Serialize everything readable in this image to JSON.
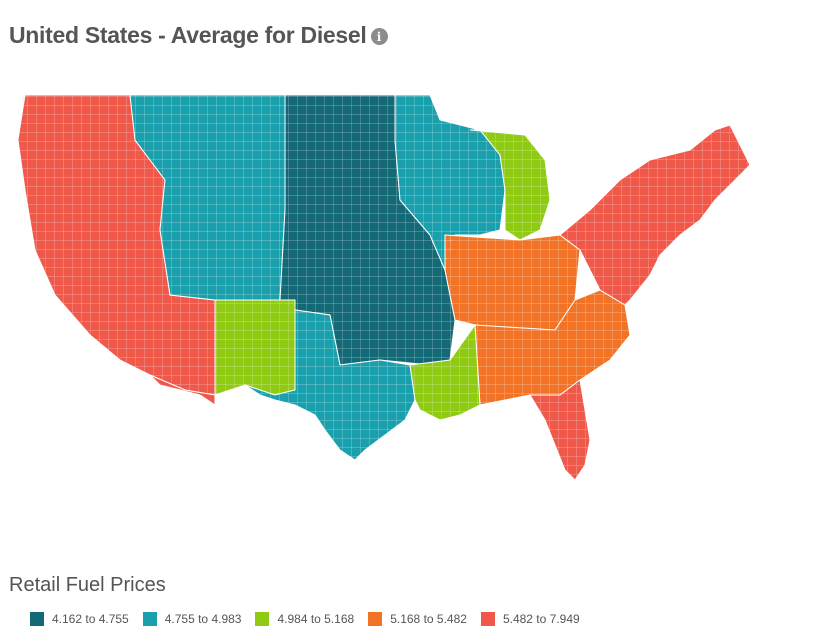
{
  "header": {
    "title": "United States - Average for Diesel",
    "info_icon": "info-icon"
  },
  "map": {
    "region": "United States",
    "fuel": "Diesel",
    "colors": {
      "c1": "#146977",
      "c2": "#1aa0ad",
      "c3": "#8fcb12",
      "c4": "#f27326",
      "c5": "#f0584a",
      "border": "#ffffff"
    },
    "regions": [
      {
        "name": "west",
        "bin": 5
      },
      {
        "name": "mountain-teal",
        "bin": 2
      },
      {
        "name": "colorado-mix",
        "bin": 3
      },
      {
        "name": "southwest",
        "bin": 5
      },
      {
        "name": "northern-plains",
        "bin": 1
      },
      {
        "name": "texas",
        "bin": 2
      },
      {
        "name": "upper-midwest",
        "bin": 2
      },
      {
        "name": "michigan",
        "bin": 3
      },
      {
        "name": "ohio-valley",
        "bin": 4
      },
      {
        "name": "southeast",
        "bin": 4
      },
      {
        "name": "gulf",
        "bin": 3
      },
      {
        "name": "northeast",
        "bin": 5
      },
      {
        "name": "florida",
        "bin": 5
      }
    ]
  },
  "legend": {
    "title": "Retail Fuel Prices",
    "items": [
      {
        "label": "4.162 to 4.755",
        "color": "#146977"
      },
      {
        "label": "4.755 to 4.983",
        "color": "#1aa0ad"
      },
      {
        "label": "4.984 to 5.168",
        "color": "#8fcb12"
      },
      {
        "label": "5.168 to 5.482",
        "color": "#f27326"
      },
      {
        "label": "5.482 to 7.949",
        "color": "#f0584a"
      }
    ]
  }
}
